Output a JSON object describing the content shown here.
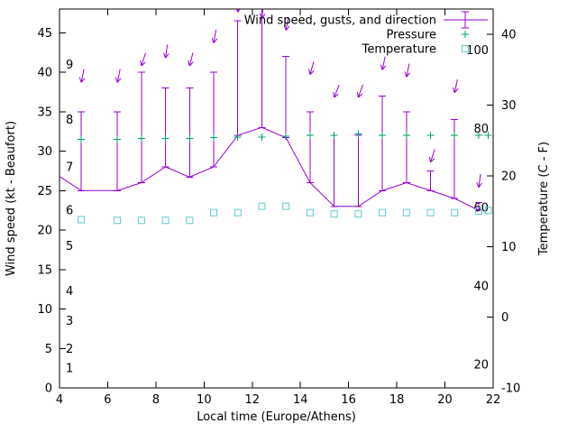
{
  "chart_data": {
    "type": "line",
    "description": "Weather meteogram with wind speed/gust error bars and direction arrows, pressure plus-markers and temperature square-markers",
    "legend": [
      {
        "label": "Wind speed, gusts, and direction",
        "series": "wind",
        "symbol": "errorbar",
        "color": "#9400d3"
      },
      {
        "label": "Pressure",
        "series": "pressure",
        "symbol": "plus",
        "color": "#009e73"
      },
      {
        "label": "Temperature",
        "series": "temperature",
        "symbol": "square",
        "color": "#5fc8cc"
      }
    ],
    "colors": {
      "wind": "#9400d3",
      "pressure": "#009e73",
      "temperature": "#5fc8cc",
      "axis": "#000000",
      "background": "#ffffff"
    },
    "x_axis": {
      "label": "Local time (Europe/Athens)",
      "min": 4,
      "max": 22,
      "ticks": [
        4,
        6,
        8,
        10,
        12,
        14,
        16,
        18,
        20,
        22
      ]
    },
    "y_left": {
      "label": "Wind speed (kt - Beaufort)",
      "min": 0,
      "max": 48,
      "ticks": [
        0,
        5,
        10,
        15,
        20,
        25,
        30,
        35,
        40,
        45
      ]
    },
    "y_right": {
      "label": "Temperature (C - F)",
      "min": -10,
      "max": 43.6,
      "ticks": [
        -10,
        0,
        10,
        20,
        30,
        40
      ]
    },
    "beaufort_scale": [
      {
        "label": "1",
        "at_kt": 2.5
      },
      {
        "label": "2",
        "at_kt": 5
      },
      {
        "label": "3",
        "at_kt": 8.5
      },
      {
        "label": "4",
        "at_kt": 12.3
      },
      {
        "label": "5",
        "at_kt": 18
      },
      {
        "label": "6",
        "at_kt": 22.5
      },
      {
        "label": "7",
        "at_kt": 28
      },
      {
        "label": "8",
        "at_kt": 34
      },
      {
        "label": "9",
        "at_kt": 41
      }
    ],
    "fahrenheit_scale": [
      20,
      40,
      60,
      80,
      100
    ],
    "wind": {
      "units": "kt",
      "x": [
        4.0,
        4.9,
        6.4,
        7.4,
        8.4,
        9.4,
        10.4,
        11.4,
        12.4,
        13.4,
        14.4,
        15.4,
        16.4,
        17.4,
        18.4,
        19.4,
        20.4,
        21.4
      ],
      "speed": [
        26.8,
        25,
        25,
        26,
        28,
        26.7,
        28,
        32,
        33,
        31.7,
        26,
        23,
        23,
        25,
        26,
        25,
        24,
        22.5
      ],
      "gust": [
        null,
        35,
        35,
        40,
        38,
        38,
        40,
        46.5,
        48.5,
        42,
        35,
        32,
        32,
        37,
        35,
        27.5,
        34,
        23.5
      ],
      "arrow_y": [
        null,
        38.7,
        38.7,
        40.8,
        41.8,
        40.8,
        43.7,
        47.6,
        46.8,
        45.3,
        39.7,
        36.8,
        36.8,
        40.3,
        39.4,
        28.6,
        37.4,
        25.4
      ],
      "arrow_tilt_deg": [
        null,
        12,
        12,
        18,
        8,
        14,
        10,
        6,
        6,
        10,
        16,
        22,
        20,
        12,
        12,
        18,
        12,
        8
      ]
    },
    "pressure": {
      "note": "plotted heights read on the left kt axis; no pressure axis is shown",
      "x": [
        4.9,
        6.4,
        7.4,
        8.4,
        9.4,
        10.4,
        11.4,
        12.4,
        13.4,
        14.4,
        15.4,
        16.4,
        17.4,
        18.4,
        19.4,
        20.4,
        21.4,
        21.8
      ],
      "y_kt_scale": [
        31.5,
        31.5,
        31.6,
        31.6,
        31.6,
        31.7,
        31.8,
        31.8,
        31.9,
        32,
        32,
        32.2,
        32,
        32,
        32,
        32,
        32,
        32
      ]
    },
    "temperature": {
      "units": "C",
      "x": [
        4.9,
        6.4,
        7.4,
        8.4,
        9.4,
        10.4,
        11.4,
        12.4,
        13.4,
        14.4,
        15.4,
        16.4,
        17.4,
        18.4,
        19.4,
        20.4,
        21.4,
        21.8
      ],
      "celsius": [
        13.8,
        13.7,
        13.7,
        13.7,
        13.7,
        14.8,
        14.8,
        15.7,
        15.7,
        14.8,
        14.6,
        14.6,
        14.8,
        14.8,
        14.8,
        14.8,
        15.0,
        15.1
      ]
    }
  }
}
